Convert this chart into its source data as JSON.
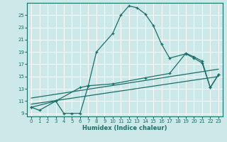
{
  "xlabel": "Humidex (Indice chaleur)",
  "xlim": [
    -0.5,
    23.5
  ],
  "ylim": [
    8.5,
    27
  ],
  "yticks": [
    9,
    11,
    13,
    15,
    17,
    19,
    21,
    23,
    25
  ],
  "xticks": [
    0,
    1,
    2,
    3,
    4,
    5,
    6,
    7,
    8,
    9,
    10,
    11,
    12,
    13,
    14,
    15,
    16,
    17,
    18,
    19,
    20,
    21,
    22,
    23
  ],
  "background_color": "#cce8e8",
  "grid_color": "#ffffff",
  "line_color": "#1a6e6a",
  "line1_x": [
    0,
    1,
    3,
    4,
    5,
    6,
    7,
    8,
    10,
    11,
    12,
    13,
    14,
    15,
    16,
    17,
    19,
    20,
    21,
    22,
    23
  ],
  "line1_y": [
    10,
    9.5,
    11,
    9,
    9,
    9,
    13.5,
    19,
    22,
    25,
    26.5,
    26.2,
    25.2,
    23.3,
    20.3,
    18,
    18.7,
    18,
    17.2,
    13.2,
    15.3
  ],
  "line2_x": [
    0,
    3,
    6,
    7,
    10,
    14,
    17,
    19,
    20,
    21,
    22,
    23
  ],
  "line2_y": [
    10,
    11,
    13.2,
    13.5,
    13.8,
    14.8,
    15.5,
    18.8,
    18.2,
    17.5,
    13.2,
    15.3
  ],
  "line3_x": [
    0,
    23
  ],
  "line3_y": [
    10.5,
    15.0
  ],
  "line4_x": [
    0,
    23
  ],
  "line4_y": [
    11.5,
    16.2
  ],
  "figsize": [
    3.2,
    2.0
  ],
  "dpi": 100
}
